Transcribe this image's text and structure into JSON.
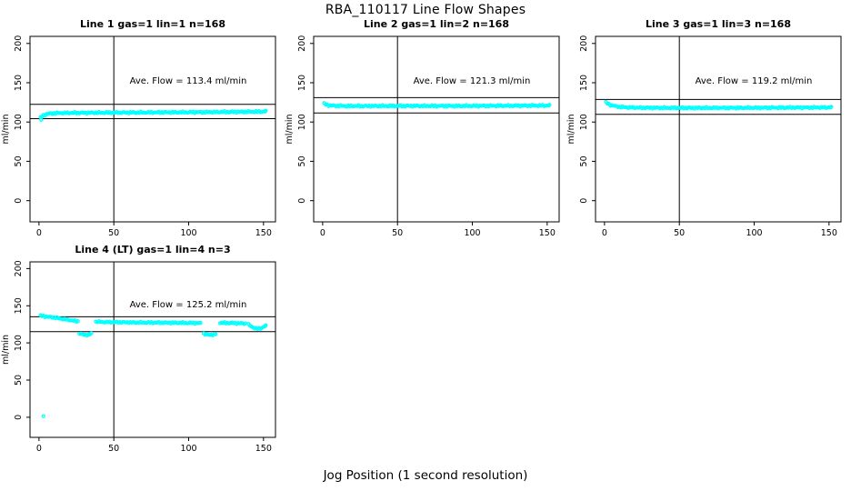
{
  "page_title": "RBA_110117  Line Flow Shapes",
  "xlabel": "Jog Position (1 second resolution)",
  "colors": {
    "points": "#00FFFF",
    "axis": "#000000",
    "background": "#FFFFFF"
  },
  "chart_data": [
    {
      "type": "scatter",
      "title": "Line 1 gas=1 lin=1 n=168",
      "ylabel": "ml/min",
      "annotation": "Ave. Flow =  113.4  ml/min",
      "ave_flow_ml_min": 113.4,
      "n": 168,
      "xlim": [
        -6,
        158
      ],
      "ylim": [
        -27,
        209
      ],
      "xticks": [
        0,
        50,
        100,
        150
      ],
      "yticks": [
        0,
        50,
        100,
        150,
        200
      ],
      "vline_x": 50,
      "hlines": [
        122.5,
        104.3
      ],
      "runs": [
        [
          [
            1,
            105.5
          ],
          [
            2,
            107
          ],
          [
            3,
            108.5
          ],
          [
            5,
            110
          ],
          [
            8,
            111
          ],
          [
            15,
            111.5
          ],
          [
            30,
            111.8
          ],
          [
            50,
            112
          ],
          [
            70,
            112.2
          ],
          [
            90,
            112.4
          ],
          [
            110,
            112.6
          ],
          [
            130,
            112.9
          ],
          [
            150,
            113.3
          ],
          [
            151.5,
            113.5
          ]
        ],
        [
          [
            1.5,
            103
          ]
        ]
      ]
    },
    {
      "type": "scatter",
      "title": "Line 2 gas=1 lin=2 n=168",
      "ylabel": "ml/min",
      "annotation": "Ave. Flow =  121.3  ml/min",
      "ave_flow_ml_min": 121.3,
      "n": 168,
      "xlim": [
        -6,
        158
      ],
      "ylim": [
        -27,
        209
      ],
      "xticks": [
        0,
        50,
        100,
        150
      ],
      "yticks": [
        0,
        50,
        100,
        150,
        200
      ],
      "vline_x": 50,
      "hlines": [
        131.0,
        111.6
      ],
      "runs": [
        [
          [
            1,
            123.5
          ],
          [
            2,
            122.5
          ],
          [
            4,
            121.3
          ],
          [
            8,
            120.7
          ],
          [
            15,
            120.4
          ],
          [
            30,
            120.4
          ],
          [
            60,
            120.5
          ],
          [
            90,
            120.5
          ],
          [
            120,
            120.7
          ],
          [
            150,
            121
          ],
          [
            151.5,
            121.1
          ]
        ]
      ]
    },
    {
      "type": "scatter",
      "title": "Line 3 gas=1 lin=3 n=168",
      "ylabel": "ml/min",
      "annotation": "Ave. Flow =  119.2  ml/min",
      "ave_flow_ml_min": 119.2,
      "n": 168,
      "xlim": [
        -6,
        158
      ],
      "ylim": [
        -27,
        209
      ],
      "xticks": [
        0,
        50,
        100,
        150
      ],
      "yticks": [
        0,
        50,
        100,
        150,
        200
      ],
      "vline_x": 50,
      "hlines": [
        128.7,
        109.7
      ],
      "runs": [
        [
          [
            1,
            125
          ],
          [
            2,
            123.5
          ],
          [
            4,
            121.8
          ],
          [
            7,
            120.3
          ],
          [
            10,
            119.3
          ],
          [
            15,
            118.7
          ],
          [
            25,
            118.2
          ],
          [
            45,
            118
          ],
          [
            70,
            118
          ],
          [
            95,
            118.1
          ],
          [
            120,
            118.3
          ],
          [
            140,
            118.5
          ],
          [
            151.5,
            118.6
          ]
        ]
      ]
    },
    {
      "type": "scatter",
      "title": "Line 4 (LT) gas=1 lin=4 n=3",
      "ylabel": "ml/min",
      "annotation": "Ave. Flow =  125.2  ml/min",
      "ave_flow_ml_min": 125.2,
      "n": 3,
      "xlim": [
        -6,
        158
      ],
      "ylim": [
        -27,
        209
      ],
      "xticks": [
        0,
        50,
        100,
        150
      ],
      "yticks": [
        0,
        50,
        100,
        150,
        200
      ],
      "vline_x": 50,
      "hlines": [
        135.2,
        115.2
      ],
      "runs": [
        [
          [
            1,
            136.5
          ],
          [
            3,
            136
          ],
          [
            6,
            135
          ],
          [
            9,
            134.5
          ],
          [
            12,
            133.5
          ],
          [
            15,
            132.5
          ],
          [
            18,
            131.5
          ],
          [
            21,
            130.5
          ],
          [
            24,
            129.5
          ],
          [
            26,
            129
          ]
        ],
        [
          [
            27,
            113
          ],
          [
            29,
            111.5
          ],
          [
            31,
            110.8
          ],
          [
            33,
            111
          ],
          [
            35,
            112.5
          ]
        ],
        [
          [
            38,
            128.5
          ],
          [
            45,
            128
          ],
          [
            55,
            127.8
          ],
          [
            65,
            127.5
          ],
          [
            75,
            127.3
          ],
          [
            85,
            127.2
          ],
          [
            95,
            127
          ],
          [
            105,
            126.8
          ],
          [
            108,
            126.5
          ]
        ],
        [
          [
            110,
            112.5
          ],
          [
            112,
            111.3
          ],
          [
            114,
            110.8
          ],
          [
            116,
            111
          ],
          [
            118,
            112
          ]
        ],
        [
          [
            121,
            127
          ],
          [
            128,
            126.8
          ],
          [
            134,
            126.5
          ],
          [
            138,
            126
          ]
        ],
        [
          [
            140,
            124.5
          ],
          [
            142,
            122
          ],
          [
            144,
            120
          ],
          [
            146,
            119
          ],
          [
            148,
            119.5
          ],
          [
            150,
            121.5
          ],
          [
            151.5,
            123
          ]
        ],
        [
          [
            3,
            1
          ]
        ]
      ]
    }
  ]
}
